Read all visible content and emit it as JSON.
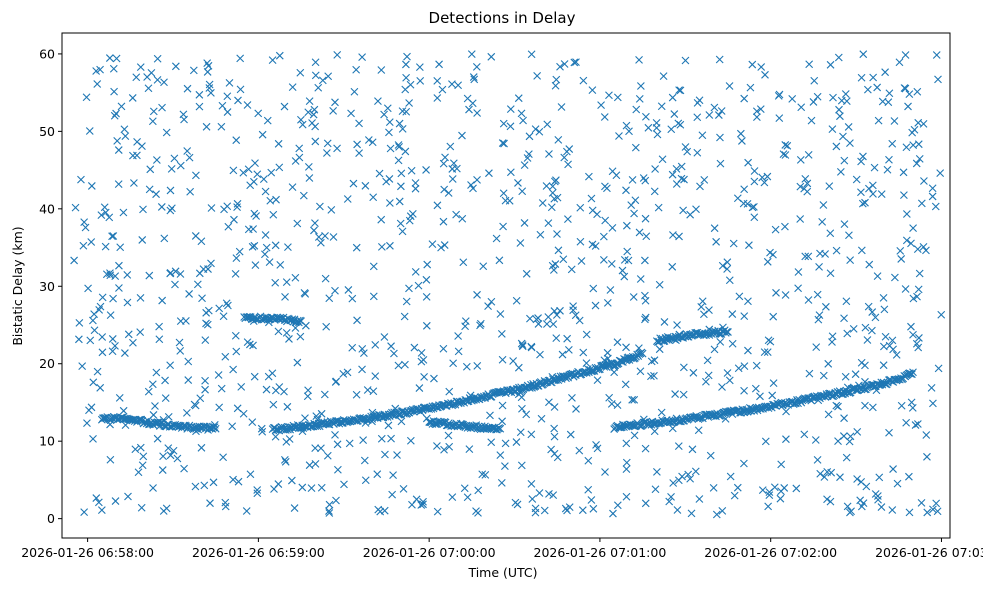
{
  "chart_data": {
    "type": "scatter",
    "title": "Detections in Delay",
    "xlabel": "Time (UTC)",
    "ylabel": "Bistatic Delay (km)",
    "x_is_time": true,
    "xlim": [
      "2026-01-26 06:57:51",
      "2026-01-26 07:03:03"
    ],
    "ylim": [
      -2.5,
      62.7
    ],
    "x_ticks": [
      "2026-01-26 06:58:00",
      "2026-01-26 06:59:00",
      "2026-01-26 07:00:00",
      "2026-01-26 07:01:00",
      "2026-01-26 07:02:00",
      "2026-01-26 07:03:00"
    ],
    "y_ticks": [
      0,
      10,
      20,
      30,
      40,
      50,
      60
    ],
    "marker": "x",
    "color": "#1f77b4",
    "grid": false,
    "series": [
      {
        "kind": "clutter",
        "t_range": [
          "2026-01-26 06:57:55",
          "2026-01-26 07:03:00"
        ],
        "y_range": [
          0.5,
          60
        ],
        "points": [
          [
            "2026-01-26 06:58:03",
            57.8
          ],
          [
            "2026-01-26 06:58:10",
            52.3
          ],
          [
            "2026-01-26 06:58:22",
            45.1
          ],
          [
            "2026-01-26 06:58:31",
            58.4
          ],
          [
            "2026-01-26 06:58:47",
            50.6
          ],
          [
            "2026-01-26 06:59:05",
            59.2
          ],
          [
            "2026-01-26 06:59:20",
            48.7
          ],
          [
            "2026-01-26 06:59:42",
            53.9
          ],
          [
            "2026-01-26 07:00:08",
            56.1
          ],
          [
            "2026-01-26 07:00:33",
            51.4
          ],
          [
            "2026-01-26 07:00:51",
            58.9
          ],
          [
            "2026-01-26 07:01:14",
            54.2
          ],
          [
            "2026-01-26 07:01:36",
            49.5
          ],
          [
            "2026-01-26 07:01:58",
            57.3
          ],
          [
            "2026-01-26 07:02:24",
            52.8
          ],
          [
            "2026-01-26 07:02:47",
            55.6
          ],
          [
            "2026-01-26 06:58:06",
            40.2
          ],
          [
            "2026-01-26 06:58:38",
            36.5
          ],
          [
            "2026-01-26 06:59:12",
            42.8
          ],
          [
            "2026-01-26 06:59:50",
            38.1
          ],
          [
            "2026-01-26 07:00:21",
            44.6
          ],
          [
            "2026-01-26 07:00:59",
            39.3
          ],
          [
            "2026-01-26 07:01:27",
            43.2
          ],
          [
            "2026-01-26 07:02:05",
            37.7
          ],
          [
            "2026-01-26 07:02:39",
            41.9
          ],
          [
            "2026-01-26 07:02:58",
            40.3
          ],
          [
            "2026-01-26 06:58:14",
            27.9
          ],
          [
            "2026-01-26 06:58:52",
            31.6
          ],
          [
            "2026-01-26 06:59:33",
            28.4
          ],
          [
            "2026-01-26 07:00:12",
            33.1
          ],
          [
            "2026-01-26 07:00:44",
            26.8
          ],
          [
            "2026-01-26 07:01:21",
            30.2
          ],
          [
            "2026-01-26 07:01:49",
            28.7
          ],
          [
            "2026-01-26 07:02:17",
            32.5
          ],
          [
            "2026-01-26 07:02:52",
            29.6
          ],
          [
            "2026-01-26 06:58:02",
            17.6
          ],
          [
            "2026-01-26 06:58:29",
            19.8
          ],
          [
            "2026-01-26 06:59:09",
            16.4
          ],
          [
            "2026-01-26 06:59:58",
            20.5
          ],
          [
            "2026-01-26 07:00:36",
            22.1
          ],
          [
            "2026-01-26 07:01:05",
            18.9
          ],
          [
            "2026-01-26 07:01:52",
            21.7
          ],
          [
            "2026-01-26 07:02:31",
            17.2
          ],
          [
            "2026-01-26 07:02:59",
            19.4
          ],
          [
            "2026-01-26 06:58:08",
            7.6
          ],
          [
            "2026-01-26 06:58:41",
            4.3
          ],
          [
            "2026-01-26 06:59:18",
            6.9
          ],
          [
            "2026-01-26 06:59:47",
            3.1
          ],
          [
            "2026-01-26 07:00:25",
            8.2
          ],
          [
            "2026-01-26 07:00:57",
            2.4
          ],
          [
            "2026-01-26 07:01:31",
            5.7
          ],
          [
            "2026-01-26 07:02:09",
            3.9
          ],
          [
            "2026-01-26 07:02:43",
            6.4
          ],
          [
            "2026-01-26 07:02:57",
            1.2
          ],
          [
            "2026-01-26 06:58:05",
            1.1
          ],
          [
            "2026-01-26 06:58:19",
            1.4
          ],
          [
            "2026-01-26 06:59:25",
            1.8
          ],
          [
            "2026-01-26 07:00:03",
            0.9
          ],
          [
            "2026-01-26 07:00:48",
            1.3
          ],
          [
            "2026-01-26 07:01:43",
            1.0
          ],
          [
            "2026-01-26 07:02:21",
            2.2
          ],
          [
            "2026-01-26 07:02:55",
            0.8
          ]
        ]
      },
      {
        "kind": "track",
        "points": [
          [
            "2026-01-26 06:58:05",
            13.0
          ],
          [
            "2026-01-26 06:58:15",
            12.8
          ],
          [
            "2026-01-26 06:58:25",
            12.2
          ],
          [
            "2026-01-26 06:58:35",
            11.8
          ],
          [
            "2026-01-26 06:58:45",
            11.6
          ]
        ]
      },
      {
        "kind": "track",
        "points": [
          [
            "2026-01-26 06:59:05",
            11.5
          ],
          [
            "2026-01-26 06:59:20",
            12.1
          ],
          [
            "2026-01-26 06:59:35",
            12.8
          ],
          [
            "2026-01-26 06:59:50",
            13.6
          ],
          [
            "2026-01-26 07:00:05",
            14.6
          ],
          [
            "2026-01-26 07:00:20",
            15.8
          ],
          [
            "2026-01-26 07:00:35",
            17.0
          ],
          [
            "2026-01-26 07:00:45",
            18.0
          ],
          [
            "2026-01-26 07:00:55",
            19.0
          ],
          [
            "2026-01-26 07:01:05",
            20.0
          ],
          [
            "2026-01-26 07:01:15",
            21.3
          ]
        ]
      },
      {
        "kind": "track",
        "points": [
          [
            "2026-01-26 07:00:00",
            12.5
          ],
          [
            "2026-01-26 07:00:10",
            12.1
          ],
          [
            "2026-01-26 07:00:20",
            11.7
          ],
          [
            "2026-01-26 07:00:25",
            11.6
          ]
        ]
      },
      {
        "kind": "track",
        "points": [
          [
            "2026-01-26 07:01:05",
            11.8
          ],
          [
            "2026-01-26 07:01:20",
            12.4
          ],
          [
            "2026-01-26 07:01:35",
            13.1
          ],
          [
            "2026-01-26 07:01:50",
            13.9
          ],
          [
            "2026-01-26 07:02:05",
            14.8
          ],
          [
            "2026-01-26 07:02:20",
            15.9
          ],
          [
            "2026-01-26 07:02:35",
            17.0
          ],
          [
            "2026-01-26 07:02:45",
            18.0
          ],
          [
            "2026-01-26 07:02:50",
            18.9
          ]
        ]
      },
      {
        "kind": "track",
        "points": [
          [
            "2026-01-26 07:01:20",
            23.0
          ],
          [
            "2026-01-26 07:01:30",
            23.6
          ],
          [
            "2026-01-26 07:01:40",
            24.0
          ],
          [
            "2026-01-26 07:01:45",
            24.1
          ]
        ]
      },
      {
        "kind": "track",
        "points": [
          [
            "2026-01-26 06:58:55",
            26.0
          ],
          [
            "2026-01-26 06:59:00",
            25.9
          ],
          [
            "2026-01-26 06:59:10",
            25.7
          ],
          [
            "2026-01-26 06:59:15",
            25.5
          ]
        ]
      }
    ]
  }
}
